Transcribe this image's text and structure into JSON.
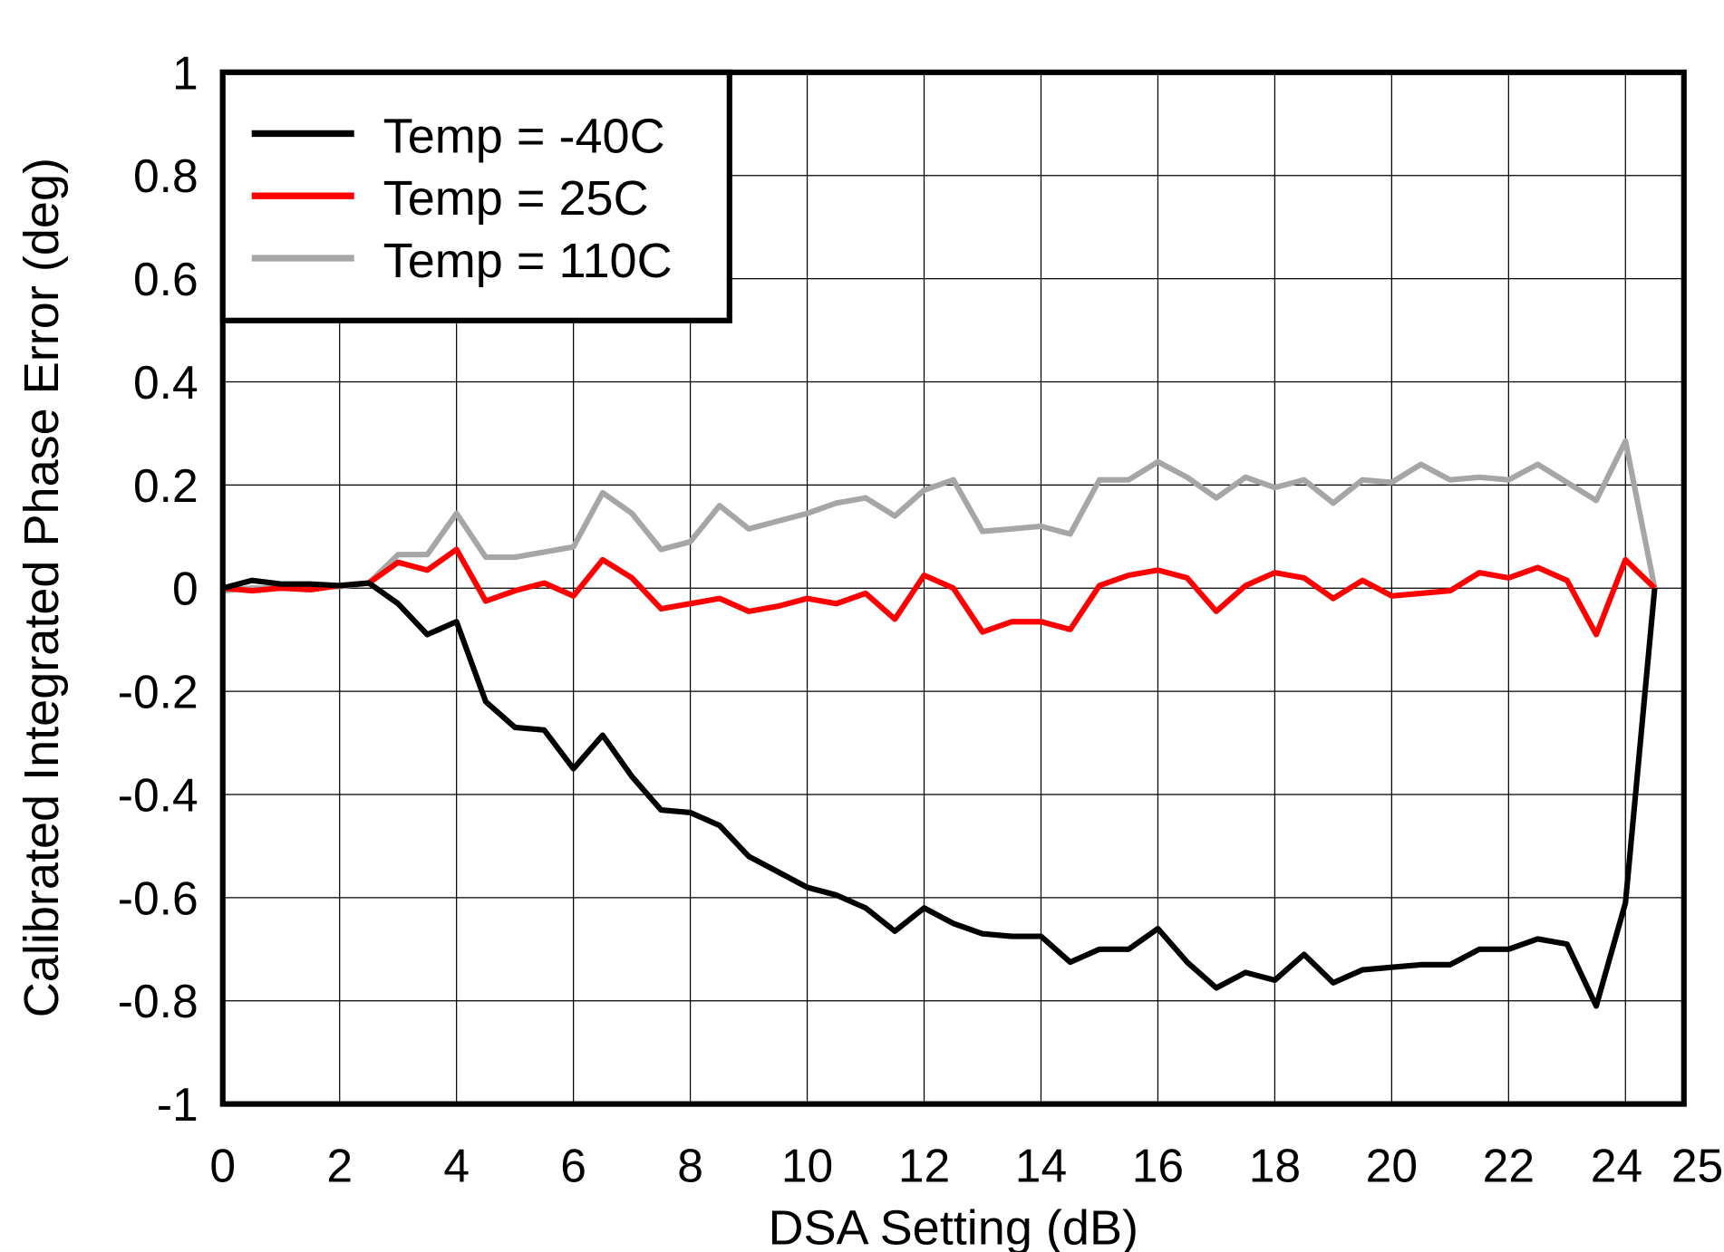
{
  "chart_data": {
    "type": "line",
    "title": "",
    "xlabel": "DSA Setting (dB)",
    "ylabel": "Calibrated Integrated Phase Error (deg)",
    "xlim": [
      0,
      25
    ],
    "ylim": [
      -1,
      1
    ],
    "xticks": [
      0,
      2,
      4,
      6,
      8,
      10,
      12,
      14,
      16,
      18,
      20,
      22,
      24,
      25
    ],
    "yticks": [
      1,
      0.8,
      0.6,
      0.4,
      0.2,
      0,
      -0.2,
      -0.4,
      -0.6,
      -0.8,
      -1
    ],
    "ytick_labels": [
      "1",
      "0.8",
      "0.6",
      "0.4",
      "0.2",
      "0",
      "-0.2",
      "-0.4",
      "-0.6",
      "-0.8",
      "-1"
    ],
    "grid": true,
    "legend_position": "top-left",
    "x": [
      0,
      0.5,
      1,
      1.5,
      2,
      2.5,
      3,
      3.5,
      4,
      4.5,
      5,
      5.5,
      6,
      6.5,
      7,
      7.5,
      8,
      8.5,
      9,
      9.5,
      10,
      10.5,
      11,
      11.5,
      12,
      12.5,
      13,
      13.5,
      14,
      14.5,
      15,
      15.5,
      16,
      16.5,
      17,
      17.5,
      18,
      18.5,
      19,
      19.5,
      20,
      20.5,
      21,
      21.5,
      22,
      22.5,
      23,
      23.5,
      24,
      24.5
    ],
    "series": [
      {
        "name": "Temp = -40C",
        "color": "#000000",
        "values": [
          0,
          0.015,
          0.008,
          0.008,
          0.005,
          0.01,
          -0.03,
          -0.09,
          -0.065,
          -0.22,
          -0.27,
          -0.275,
          -0.35,
          -0.285,
          -0.365,
          -0.43,
          -0.435,
          -0.46,
          -0.52,
          -0.55,
          -0.58,
          -0.595,
          -0.62,
          -0.665,
          -0.62,
          -0.65,
          -0.67,
          -0.675,
          -0.675,
          -0.725,
          -0.7,
          -0.7,
          -0.66,
          -0.725,
          -0.775,
          -0.745,
          -0.76,
          -0.71,
          -0.765,
          -0.74,
          -0.735,
          -0.73,
          -0.73,
          -0.7,
          -0.7,
          -0.68,
          -0.69,
          -0.81,
          -0.61,
          0
        ]
      },
      {
        "name": "Temp = 25C",
        "color": "#ff0000",
        "values": [
          0,
          -0.005,
          0,
          -0.003,
          0.005,
          0.01,
          0.05,
          0.035,
          0.075,
          -0.025,
          -0.005,
          0.01,
          -0.015,
          0.055,
          0.02,
          -0.04,
          -0.03,
          -0.02,
          -0.045,
          -0.035,
          -0.02,
          -0.03,
          -0.01,
          -0.06,
          0.025,
          0,
          -0.085,
          -0.065,
          -0.065,
          -0.08,
          0.005,
          0.025,
          0.035,
          0.02,
          -0.045,
          0.005,
          0.03,
          0.02,
          -0.02,
          0.015,
          -0.015,
          -0.01,
          -0.005,
          0.03,
          0.02,
          0.04,
          0.015,
          -0.09,
          0.055,
          0
        ]
      },
      {
        "name": "Temp = 110C",
        "color": "#a6a6a6",
        "values": [
          -0.005,
          0,
          0,
          0.003,
          0.003,
          0.01,
          0.065,
          0.065,
          0.145,
          0.06,
          0.06,
          0.07,
          0.08,
          0.185,
          0.145,
          0.075,
          0.09,
          0.16,
          0.115,
          0.13,
          0.145,
          0.165,
          0.175,
          0.14,
          0.19,
          0.21,
          0.11,
          0.115,
          0.12,
          0.105,
          0.21,
          0.21,
          0.245,
          0.215,
          0.175,
          0.215,
          0.195,
          0.21,
          0.165,
          0.21,
          0.205,
          0.24,
          0.21,
          0.215,
          0.21,
          0.24,
          0.205,
          0.17,
          0.285,
          0
        ]
      }
    ]
  }
}
